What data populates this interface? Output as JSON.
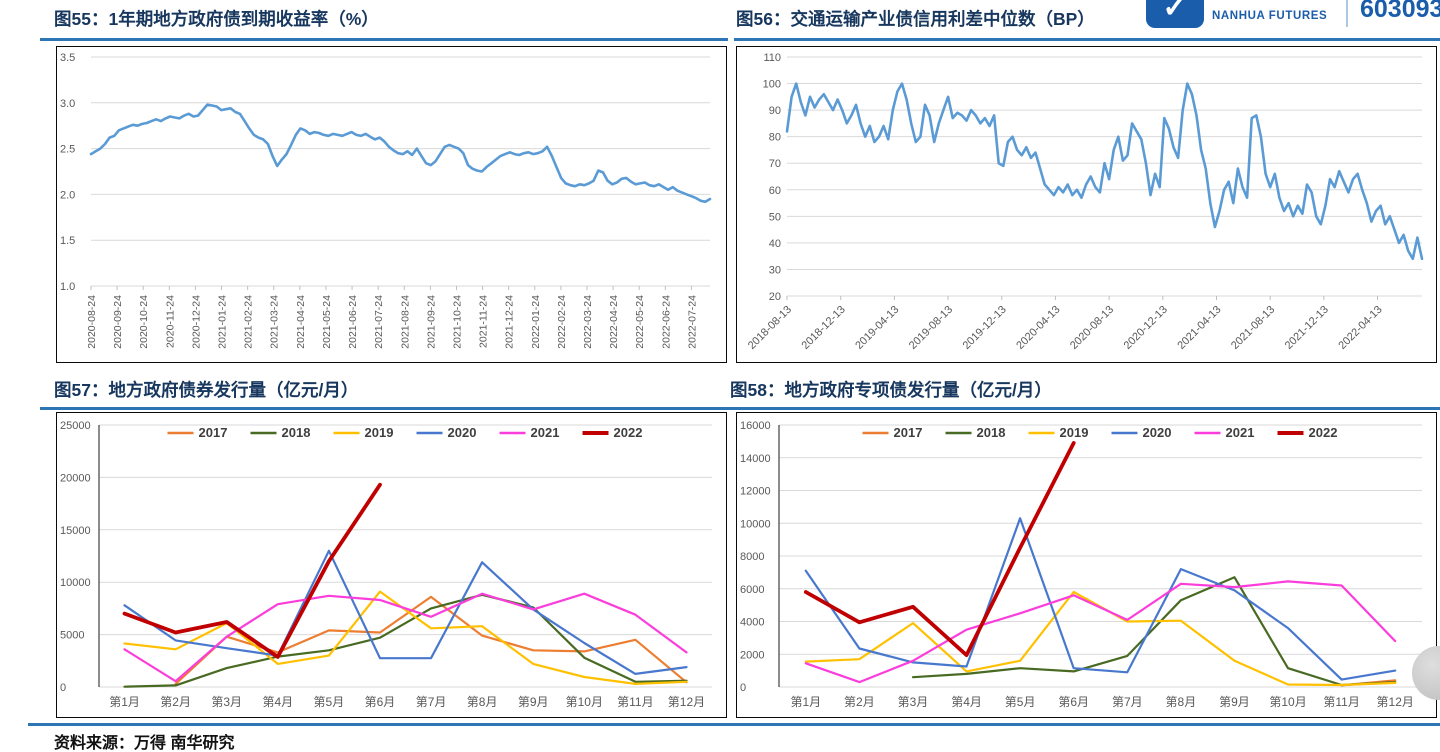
{
  "header": {
    "brand_en": "NANHUA FUTURES",
    "stock_code": "603093",
    "brand_color": "#1A5DAB"
  },
  "footer": {
    "source_label": "资料来源：万得 南华研究"
  },
  "colors": {
    "title_navy": "#17375E",
    "title_rule_blue": "#2E75B6",
    "gridline": "#D9D9D9",
    "axis_text": "#595959",
    "single_line_blue": "#5B9BD5",
    "s2017": "#ED7D31",
    "s2018": "#486A22",
    "s2019": "#FFC000",
    "s2020": "#4878CE",
    "s2021": "#FB3DDB",
    "s2022": "#C00000"
  },
  "chart_data": [
    {
      "id": "fig55",
      "type": "line",
      "title": "图55：1年期地方政府债到期收益率（%）",
      "ylim": [
        1.0,
        3.5
      ],
      "yticks": [
        1.0,
        1.5,
        2.0,
        2.5,
        3.0,
        3.5
      ],
      "ytick_labels": [
        "1.0",
        "1.5",
        "2.0",
        "2.5",
        "3.0",
        "3.5"
      ],
      "grid": "horizontal",
      "legend": false,
      "x_tick_labels": [
        "2020-08-24",
        "2020-09-24",
        "2020-10-24",
        "2020-11-24",
        "2020-12-24",
        "2021-01-24",
        "2021-02-24",
        "2021-03-24",
        "2021-04-24",
        "2021-05-24",
        "2021-06-24",
        "2021-07-24",
        "2021-08-24",
        "2021-09-24",
        "2021-10-24",
        "2021-11-24",
        "2021-12-24",
        "2022-01-24",
        "2022-02-24",
        "2022-03-24",
        "2022-04-24",
        "2022-05-24",
        "2022-06-24",
        "2022-07-24"
      ],
      "x_rotation": 90,
      "xlabel_span": 0.97,
      "series": [
        {
          "name": "1年期地方政府债到期收益率",
          "color": "#5B9BD5",
          "width": 2.6,
          "values": [
            2.44,
            2.47,
            2.5,
            2.55,
            2.62,
            2.64,
            2.7,
            2.72,
            2.74,
            2.76,
            2.75,
            2.77,
            2.78,
            2.8,
            2.82,
            2.8,
            2.83,
            2.85,
            2.84,
            2.83,
            2.86,
            2.88,
            2.85,
            2.86,
            2.92,
            2.98,
            2.97,
            2.96,
            2.92,
            2.93,
            2.94,
            2.9,
            2.88,
            2.8,
            2.72,
            2.65,
            2.62,
            2.6,
            2.55,
            2.42,
            2.31,
            2.38,
            2.44,
            2.54,
            2.65,
            2.72,
            2.7,
            2.66,
            2.68,
            2.67,
            2.65,
            2.64,
            2.66,
            2.65,
            2.64,
            2.66,
            2.68,
            2.65,
            2.64,
            2.66,
            2.63,
            2.6,
            2.62,
            2.58,
            2.52,
            2.48,
            2.45,
            2.44,
            2.47,
            2.43,
            2.5,
            2.42,
            2.34,
            2.32,
            2.36,
            2.44,
            2.52,
            2.54,
            2.52,
            2.5,
            2.45,
            2.32,
            2.28,
            2.26,
            2.25,
            2.3,
            2.34,
            2.38,
            2.42,
            2.44,
            2.46,
            2.44,
            2.43,
            2.45,
            2.46,
            2.44,
            2.45,
            2.47,
            2.52,
            2.42,
            2.3,
            2.18,
            2.12,
            2.1,
            2.09,
            2.11,
            2.1,
            2.12,
            2.15,
            2.26,
            2.24,
            2.15,
            2.11,
            2.13,
            2.17,
            2.18,
            2.14,
            2.11,
            2.12,
            2.13,
            2.1,
            2.09,
            2.11,
            2.08,
            2.05,
            2.08,
            2.04,
            2.02,
            2.0,
            1.98,
            1.96,
            1.93,
            1.92,
            1.95
          ]
        }
      ]
    },
    {
      "id": "fig56",
      "type": "line",
      "title": "图56：交通运输产业债信用利差中位数（BP）",
      "ylim": [
        20,
        110
      ],
      "yticks": [
        20,
        30,
        40,
        50,
        60,
        70,
        80,
        90,
        100,
        110
      ],
      "ytick_labels": [
        "20",
        "30",
        "40",
        "50",
        "60",
        "70",
        "80",
        "90",
        "100",
        "110"
      ],
      "grid": "horizontal",
      "legend": false,
      "x_tick_labels": [
        "2018-08-13",
        "2018-12-13",
        "2019-04-13",
        "2019-08-13",
        "2019-12-13",
        "2020-04-13",
        "2020-08-13",
        "2020-12-13",
        "2021-04-13",
        "2021-08-13",
        "2021-12-13",
        "2022-04-13"
      ],
      "x_rotation": 45,
      "xlabel_span": 0.93,
      "series": [
        {
          "name": "交通运输产业债信用利差中位数",
          "color": "#5B9BD5",
          "width": 2.6,
          "values": [
            82,
            95,
            100,
            93,
            88,
            95,
            91,
            94,
            96,
            93,
            90,
            94,
            90,
            85,
            88,
            92,
            85,
            80,
            84,
            78,
            80,
            84,
            79,
            90,
            97,
            100,
            94,
            85,
            78,
            80,
            92,
            88,
            78,
            85,
            90,
            95,
            87,
            89,
            88,
            86,
            90,
            88,
            85,
            87,
            84,
            88,
            70,
            69,
            78,
            80,
            75,
            73,
            76,
            72,
            74,
            68,
            62,
            60,
            58,
            61,
            59,
            62,
            58,
            60,
            57,
            62,
            65,
            61,
            59,
            70,
            64,
            75,
            80,
            71,
            73,
            85,
            82,
            79,
            70,
            58,
            66,
            61,
            87,
            83,
            76,
            72,
            90,
            100,
            96,
            88,
            75,
            68,
            55,
            46,
            52,
            60,
            63,
            55,
            68,
            61,
            57,
            87,
            88,
            80,
            66,
            61,
            66,
            57,
            52,
            55,
            50,
            54,
            51,
            62,
            59,
            50,
            47,
            54,
            64,
            61,
            67,
            63,
            59,
            64,
            66,
            60,
            55,
            48,
            52,
            54,
            47,
            50,
            45,
            40,
            43,
            37,
            34,
            42,
            34
          ]
        }
      ]
    },
    {
      "id": "fig57",
      "type": "line",
      "title": "图57：地方政府债券发行量（亿元/月）",
      "ylim": [
        0,
        25000
      ],
      "yticks": [
        0,
        5000,
        10000,
        15000,
        20000,
        25000
      ],
      "ytick_labels": [
        "0",
        "5000",
        "10000",
        "15000",
        "20000",
        "25000"
      ],
      "grid": "horizontal",
      "legend": true,
      "legend_position": "top-center",
      "categories": [
        "第1月",
        "第2月",
        "第3月",
        "第4月",
        "第5月",
        "第6月",
        "第7月",
        "第8月",
        "第9月",
        "第10月",
        "第11月",
        "第12月"
      ],
      "x_rotation": 0,
      "series": [
        {
          "name": "2017",
          "color": "#ED7D31",
          "width": 2.2,
          "values": [
            null,
            300,
            4800,
            3300,
            5400,
            5200,
            8600,
            4900,
            3500,
            3400,
            4500,
            450
          ]
        },
        {
          "name": "2018",
          "color": "#486A22",
          "width": 2.2,
          "values": [
            30,
            150,
            1800,
            2900,
            3500,
            4700,
            7500,
            8800,
            7600,
            2800,
            500,
            600
          ]
        },
        {
          "name": "2019",
          "color": "#FFC000",
          "width": 2.2,
          "values": [
            4150,
            3600,
            6100,
            2200,
            3000,
            9100,
            5600,
            5800,
            2200,
            950,
            300,
            500
          ]
        },
        {
          "name": "2020",
          "color": "#4878CE",
          "width": 2.2,
          "values": [
            7800,
            4450,
            3700,
            3000,
            13000,
            2750,
            2750,
            11900,
            7400,
            4200,
            1250,
            1900
          ]
        },
        {
          "name": "2021",
          "color": "#FB3DDB",
          "width": 2.2,
          "values": [
            3600,
            550,
            4800,
            7900,
            8700,
            8300,
            6700,
            8900,
            7400,
            8900,
            6900,
            3300
          ]
        },
        {
          "name": "2022",
          "color": "#C00000",
          "width": 3.8,
          "values": [
            7000,
            5200,
            6200,
            2870,
            12000,
            19300,
            null,
            null,
            null,
            null,
            null,
            null
          ]
        }
      ]
    },
    {
      "id": "fig58",
      "type": "line",
      "title": "图58：地方政府专项债发行量（亿元/月）",
      "ylim": [
        0,
        16000
      ],
      "yticks": [
        0,
        2000,
        4000,
        6000,
        8000,
        10000,
        12000,
        14000,
        16000
      ],
      "ytick_labels": [
        "0",
        "2000",
        "4000",
        "6000",
        "8000",
        "10000",
        "12000",
        "14000",
        "16000"
      ],
      "grid": "horizontal",
      "legend": true,
      "legend_position": "top-center",
      "categories": [
        "第1月",
        "第2月",
        "第3月",
        "第4月",
        "第5月",
        "第6月",
        "第7月",
        "第8月",
        "第9月",
        "第10月",
        "第11月",
        "第12月"
      ],
      "x_rotation": 0,
      "series": [
        {
          "name": "2017",
          "color": "#ED7D31",
          "width": 2.2,
          "values": [
            null,
            null,
            null,
            null,
            null,
            null,
            null,
            null,
            null,
            null,
            100,
            400
          ]
        },
        {
          "name": "2018",
          "color": "#486A22",
          "width": 2.2,
          "values": [
            null,
            null,
            600,
            800,
            1150,
            950,
            1900,
            5300,
            6700,
            1150,
            120,
            300
          ]
        },
        {
          "name": "2019",
          "color": "#FFC000",
          "width": 2.2,
          "values": [
            1550,
            1700,
            3900,
            950,
            1600,
            5800,
            4000,
            4050,
            1600,
            150,
            120,
            250
          ]
        },
        {
          "name": "2020",
          "color": "#4878CE",
          "width": 2.2,
          "values": [
            7100,
            2350,
            1500,
            1250,
            10300,
            1150,
            900,
            7200,
            5900,
            3600,
            450,
            1000
          ]
        },
        {
          "name": "2021",
          "color": "#FB3DDB",
          "width": 2.2,
          "values": [
            1450,
            300,
            1600,
            3500,
            4500,
            5600,
            4100,
            6300,
            6100,
            6450,
            6200,
            2800
          ]
        },
        {
          "name": "2022",
          "color": "#C00000",
          "width": 3.8,
          "values": [
            5800,
            3950,
            4900,
            1950,
            8500,
            14900,
            null,
            null,
            null,
            null,
            null,
            null
          ]
        }
      ]
    }
  ]
}
